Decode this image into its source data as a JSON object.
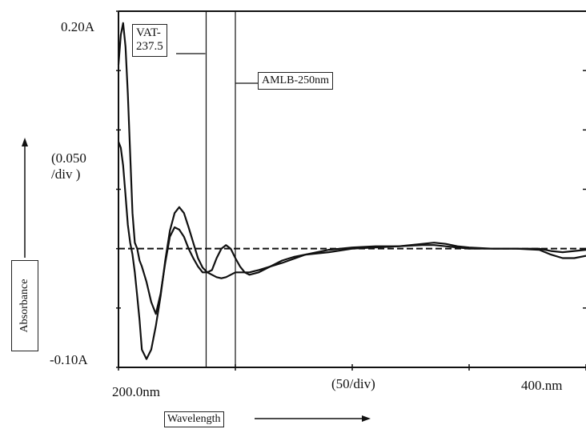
{
  "chart_data": {
    "type": "line",
    "y_top_label": "0.20A",
    "y_bottom_label": "-0.10A",
    "y_scale_label": "(0.050\n /div )",
    "ylabel": "Absorbance",
    "x_left_label": "200.0nm",
    "x_right_label": "400.nm",
    "x_scale_label": "(50/div)",
    "xlabel": "Wavelength",
    "xlim": [
      200,
      400
    ],
    "ylim": [
      -0.1,
      0.2
    ],
    "baseline": 0,
    "annotations": [
      {
        "text": "VAT-\n237.5",
        "x": 237.5
      },
      {
        "text": "AMLB-250nm",
        "x": 250
      }
    ],
    "series": [
      {
        "x": [
          200,
          201,
          202,
          203,
          204,
          205,
          206,
          207,
          208,
          209,
          210,
          212,
          214,
          216,
          218,
          220,
          222,
          224,
          226,
          228,
          230,
          232,
          234,
          236,
          238,
          240,
          242,
          244,
          246,
          248,
          250,
          252,
          254,
          256,
          258,
          260,
          265,
          270,
          275,
          280,
          290,
          300,
          310,
          320,
          330,
          335,
          340,
          345,
          350,
          360,
          370,
          380,
          385,
          390,
          395,
          400
        ],
        "y": [
          0.155,
          0.18,
          0.19,
          0.17,
          0.13,
          0.08,
          0.03,
          0.005,
          0.0,
          -0.01,
          -0.015,
          -0.028,
          -0.045,
          -0.055,
          -0.038,
          -0.012,
          0.01,
          0.018,
          0.016,
          0.01,
          0.0,
          -0.008,
          -0.015,
          -0.02,
          -0.02,
          -0.018,
          -0.008,
          0.0,
          0.003,
          0.0,
          -0.008,
          -0.015,
          -0.02,
          -0.022,
          -0.021,
          -0.02,
          -0.015,
          -0.01,
          -0.007,
          -0.005,
          -0.003,
          0.0,
          0.001,
          0.002,
          0.004,
          0.005,
          0.004,
          0.002,
          0.001,
          0.0,
          0.0,
          0.0,
          -0.002,
          -0.003,
          -0.002,
          -0.001
        ]
      },
      {
        "x": [
          200,
          201,
          202,
          203,
          204,
          205,
          206,
          207,
          208,
          209,
          210,
          212,
          214,
          216,
          218,
          220,
          222,
          224,
          226,
          228,
          230,
          232,
          234,
          236,
          238,
          240,
          242,
          244,
          246,
          248,
          250,
          252,
          254,
          256,
          258,
          260,
          265,
          270,
          280,
          290,
          300,
          310,
          320,
          330,
          335,
          340,
          350,
          360,
          370,
          380,
          385,
          390,
          395,
          400
        ],
        "y": [
          0.09,
          0.085,
          0.07,
          0.045,
          0.02,
          0.005,
          -0.005,
          -0.02,
          -0.04,
          -0.06,
          -0.085,
          -0.093,
          -0.085,
          -0.065,
          -0.04,
          -0.01,
          0.015,
          0.03,
          0.035,
          0.03,
          0.018,
          0.005,
          -0.008,
          -0.016,
          -0.02,
          -0.022,
          -0.024,
          -0.025,
          -0.024,
          -0.022,
          -0.02,
          -0.02,
          -0.02,
          -0.02,
          -0.019,
          -0.018,
          -0.015,
          -0.012,
          -0.005,
          -0.001,
          0.001,
          0.002,
          0.002,
          0.003,
          0.003,
          0.002,
          0.0,
          0.0,
          0.0,
          -0.001,
          -0.005,
          -0.008,
          -0.008,
          -0.006
        ]
      }
    ]
  }
}
